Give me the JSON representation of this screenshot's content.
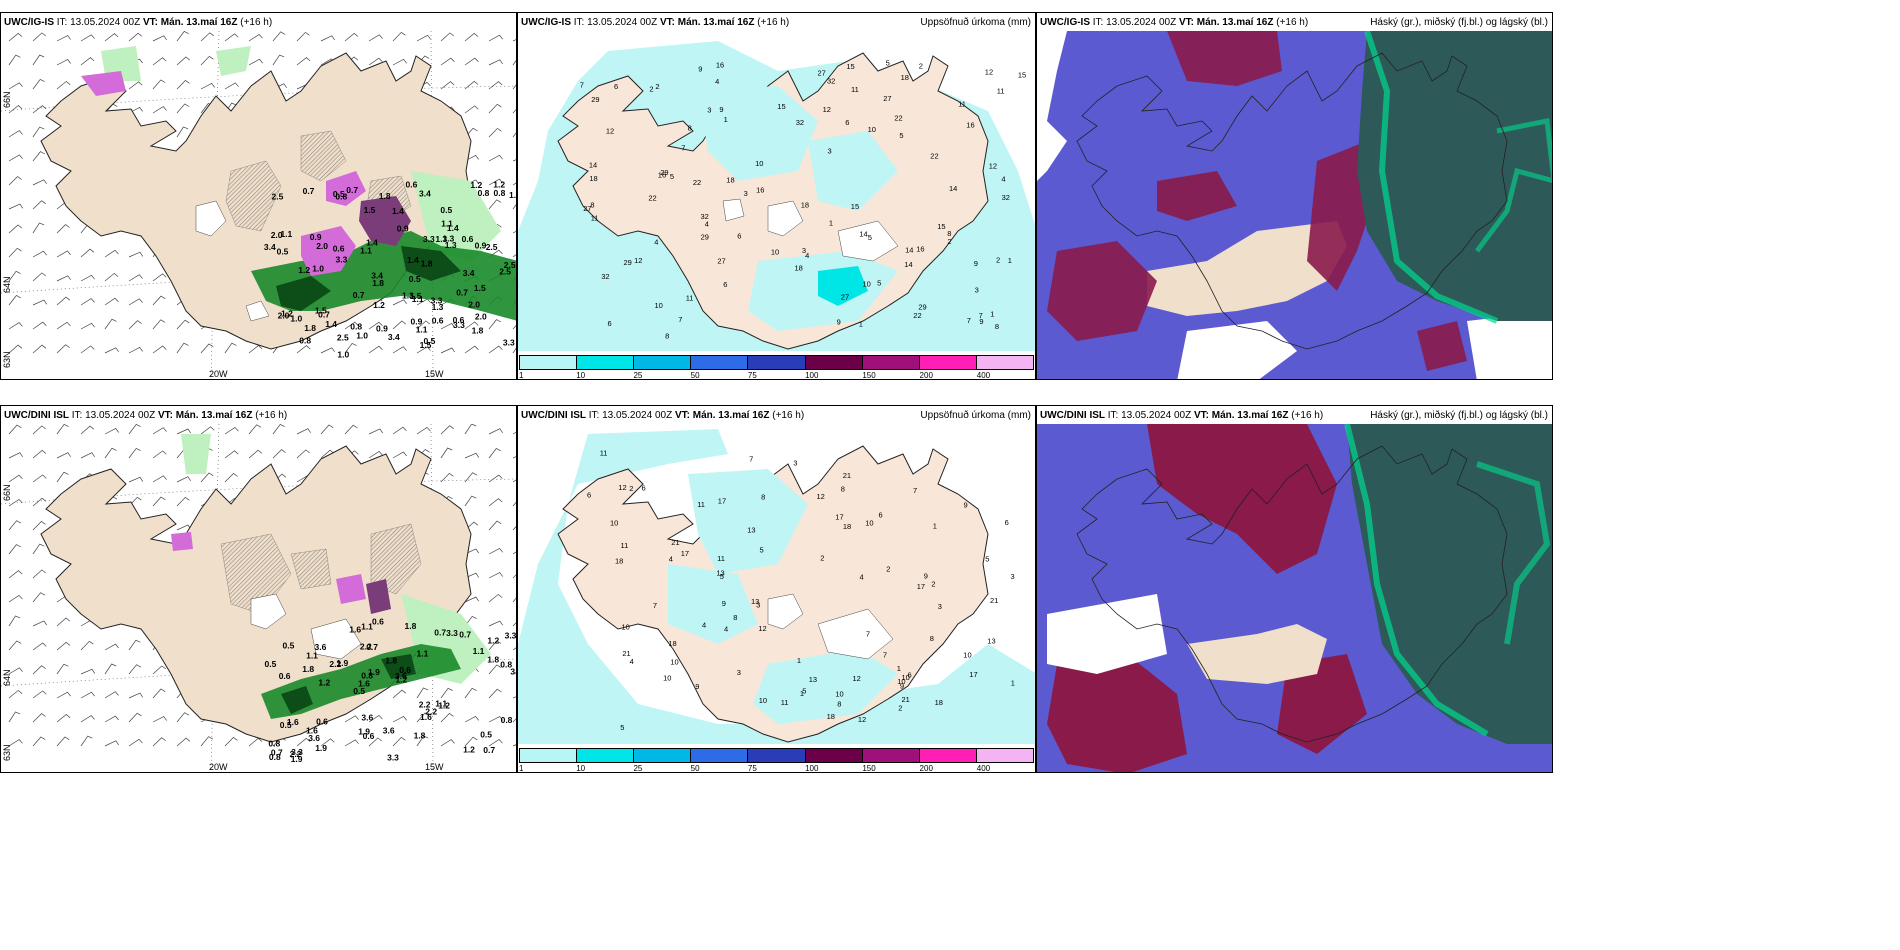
{
  "row1": {
    "model": "UWC/IG-IS",
    "it_label": "IT:",
    "init": "13.05.2024 00Z",
    "vt_label": "VT:",
    "valid": "Mán. 13.maí 16Z",
    "lead": "(+16 h)"
  },
  "row2": {
    "model": "UWC/DINI ISL",
    "it_label": "IT:",
    "init": "13.05.2024 00Z",
    "vt_label": "VT:",
    "valid": "Mán. 13.maí 16Z",
    "lead": "(+16 h)"
  },
  "precip_title": "Uppsöfnuð úrkoma (mm)",
  "cloud_title": "Háský (gr.), miðský (fj.bl.) og lágský (bl.)",
  "coords": {
    "lat66": "66N",
    "lat64": "64N",
    "lat63": "63N",
    "lon20": "20W",
    "lon15": "15W"
  },
  "colorbar": {
    "labels": [
      "1",
      "10",
      "25",
      "50",
      "75",
      "100",
      "150",
      "200",
      "400"
    ],
    "colors": [
      "#b8f5f5",
      "#00e5e5",
      "#00b8e6",
      "#2e6be6",
      "#2a3db8",
      "#6b0048",
      "#a0107a",
      "#ff1fb4",
      "#f4b4f4"
    ]
  },
  "precip_labels_top": [
    "1",
    "12",
    "10",
    "4",
    "3",
    "2",
    "6",
    "5",
    "9",
    "11",
    "7",
    "8",
    "22",
    "27",
    "29",
    "18",
    "32",
    "14",
    "16",
    "15"
  ],
  "precip_labels_bottom": [
    "10",
    "13",
    "2",
    "6",
    "3",
    "4",
    "5",
    "10",
    "9",
    "21",
    "18",
    "17",
    "11",
    "12",
    "7",
    "8",
    "1"
  ],
  "rain_labels_top": [
    "0.5",
    "0.8",
    "0.7",
    "0.9",
    "0.6",
    "1.1",
    "2.5",
    "3.3",
    "1.8",
    "1.4",
    "1.0",
    "2.0",
    "3.4",
    "1.5",
    "1.3",
    "1.2"
  ],
  "rain_labels_bottom": [
    "0.7",
    "0.6",
    "1.2",
    "0.5",
    "1.1",
    "3.3",
    "2.2",
    "1.8",
    "1.6",
    "1.9",
    "0.8",
    "3.6"
  ]
}
